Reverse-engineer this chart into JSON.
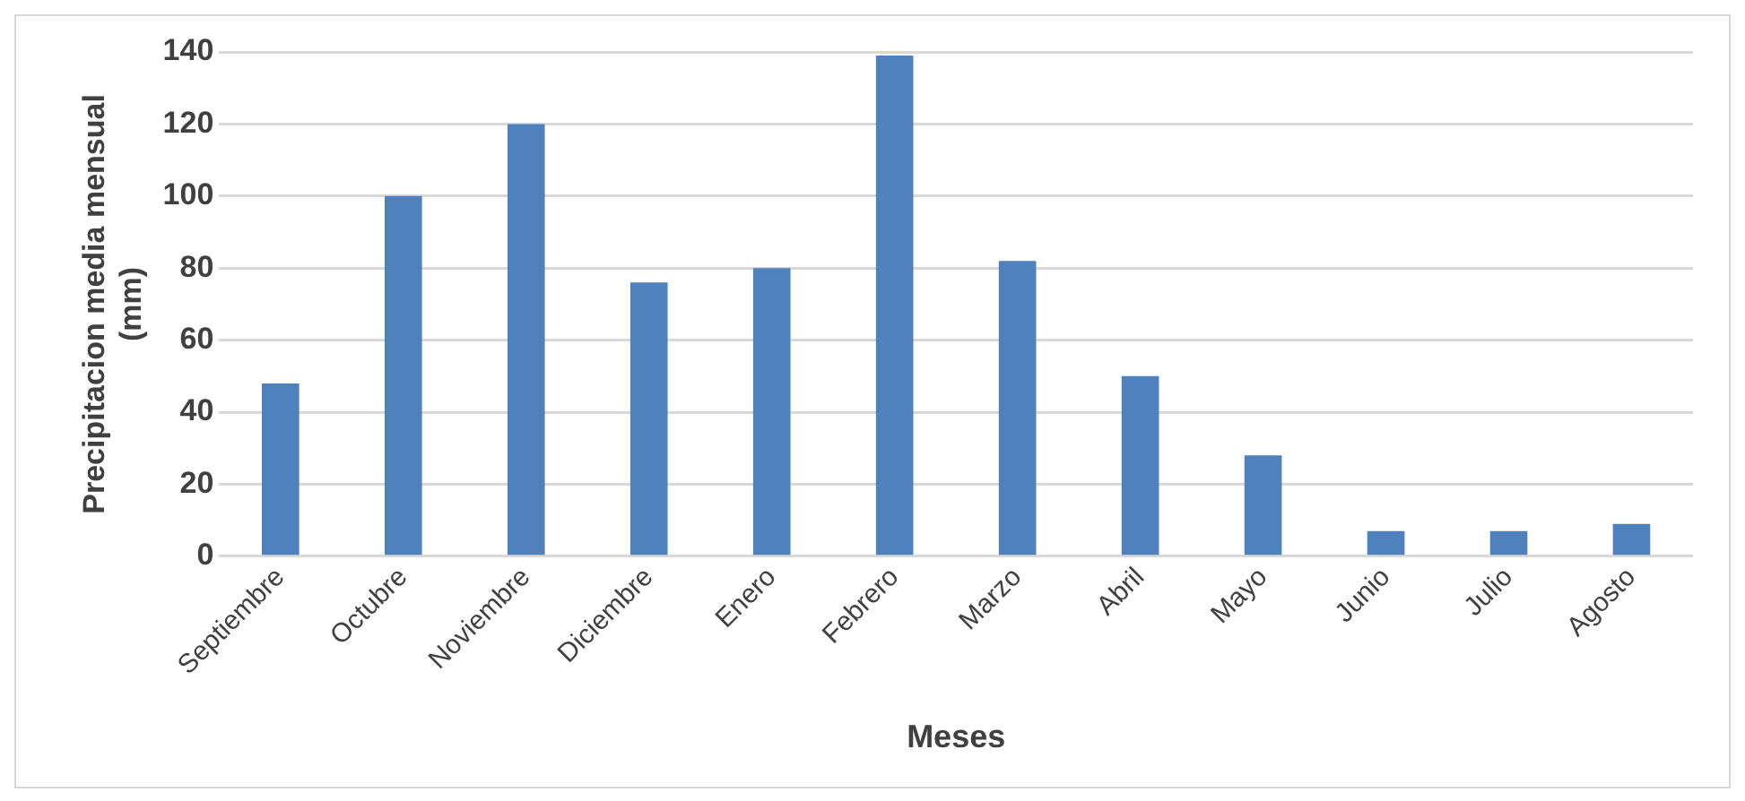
{
  "chart_data": {
    "type": "bar",
    "xlabel": "Meses",
    "ylabel": "Precipitacion media mensual (mm)",
    "categories": [
      "Septiembre",
      "Octubre",
      "Noviembre",
      "Diciembre",
      "Enero",
      "Febrero",
      "Marzo",
      "Abril",
      "Mayo",
      "Junio",
      "Julio",
      "Agosto"
    ],
    "values": [
      48,
      100,
      120,
      76,
      80,
      139,
      82,
      50,
      28,
      7,
      7,
      9
    ],
    "color": "#4f81bd",
    "ylim": [
      0,
      140
    ],
    "yticks": [
      0,
      20,
      40,
      60,
      80,
      100,
      120,
      140
    ],
    "grid": "y",
    "legend": false
  }
}
